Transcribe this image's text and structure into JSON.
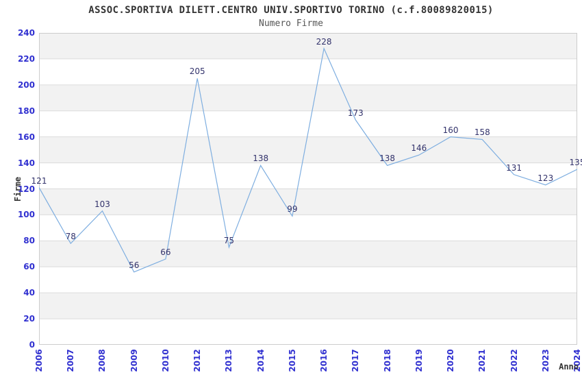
{
  "header": {
    "title": "ASSOC.SPORTIVA DILETT.CENTRO UNIV.SPORTIVO TORINO (c.f.80089820015)",
    "subtitle": "Numero Firme"
  },
  "chart_data": {
    "type": "line",
    "title": "ASSOC.SPORTIVA DILETT.CENTRO UNIV.SPORTIVO TORINO (c.f.80089820015)",
    "subtitle": "Numero Firme",
    "xlabel": "Anno",
    "ylabel": "Firme",
    "categories": [
      "2006",
      "2007",
      "2008",
      "2009",
      "2010",
      "2012",
      "2013",
      "2014",
      "2015",
      "2016",
      "2017",
      "2018",
      "2019",
      "2020",
      "2021",
      "2022",
      "2023",
      "2024"
    ],
    "values": [
      121,
      78,
      103,
      56,
      66,
      205,
      75,
      138,
      99,
      228,
      173,
      138,
      146,
      160,
      158,
      131,
      123,
      135
    ],
    "ylim": [
      0,
      240
    ],
    "yticks": [
      0,
      20,
      40,
      60,
      80,
      100,
      120,
      140,
      160,
      180,
      200,
      220,
      240
    ],
    "grid": true,
    "banded_background": true,
    "legend": "none",
    "colors": {
      "line": "#7EAEE0",
      "value_label": "#32326B",
      "tick_label": "#3030D0",
      "band": "#F2F2F2",
      "gridline": "#DBDBDB",
      "plot_border": "#CCCCCC",
      "title": "#333333",
      "subtitle": "#555555",
      "axis_title": "#333333"
    }
  }
}
